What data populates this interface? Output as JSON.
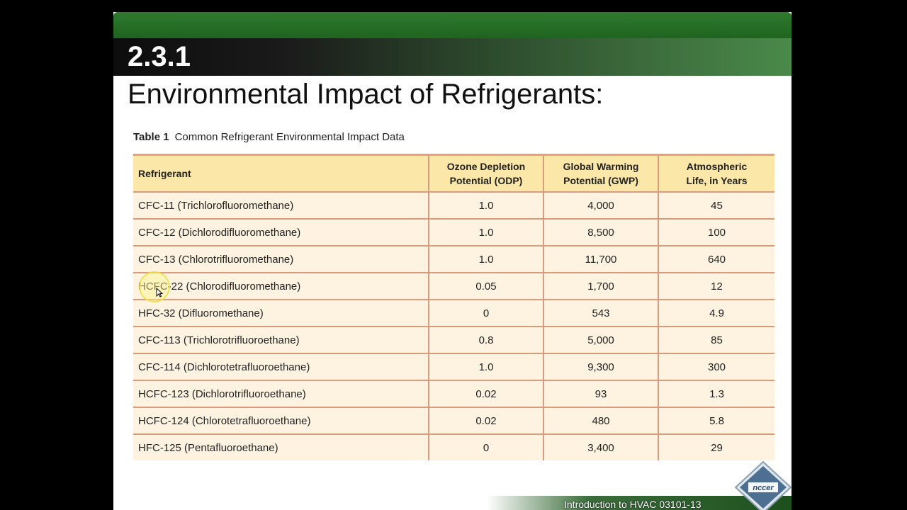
{
  "slide": {
    "section_number": "2.3.1",
    "title": "Environmental Impact of Refrigerants:"
  },
  "table": {
    "caption_number": "Table 1",
    "caption_text": "Common Refrigerant  Environmental Impact Data",
    "headers": [
      {
        "line1": "Refrigerant",
        "line2": ""
      },
      {
        "line1": "Ozone Depletion",
        "line2": "Potential (ODP)"
      },
      {
        "line1": "Global Warming",
        "line2": "Potential (GWP)"
      },
      {
        "line1": "Atmospheric",
        "line2": "Life, in Years"
      }
    ],
    "rows": [
      {
        "refrigerant": "CFC-11 (Trichlorofluoromethane)",
        "odp": "1.0",
        "gwp": "4,000",
        "life": "45"
      },
      {
        "refrigerant": "CFC-12 (Dichlorodifluoromethane)",
        "odp": "1.0",
        "gwp": "8,500",
        "life": "100"
      },
      {
        "refrigerant": "CFC-13 (Chlorotrifluoromethane)",
        "odp": "1.0",
        "gwp": "11,700",
        "life": "640"
      },
      {
        "refrigerant": "HCFC-22 (Chlorodifluoromethane)",
        "odp": "0.05",
        "gwp": "1,700",
        "life": "12"
      },
      {
        "refrigerant": "HFC-32 (Difluoromethane)",
        "odp": "0",
        "gwp": "543",
        "life": "4.9"
      },
      {
        "refrigerant": "CFC-113 (Trichlorotrifluoroethane)",
        "odp": "0.8",
        "gwp": "5,000",
        "life": "85"
      },
      {
        "refrigerant": "CFC-114 (Dichlorotetrafluoroethane)",
        "odp": "1.0",
        "gwp": "9,300",
        "life": "300"
      },
      {
        "refrigerant": "HCFC-123 (Dichlorotrifluoroethane)",
        "odp": "0.02",
        "gwp": "93",
        "life": "1.3"
      },
      {
        "refrigerant": "HCFC-124 (Chlorotetrafluoroethane)",
        "odp": "0.02",
        "gwp": "480",
        "life": "5.8"
      },
      {
        "refrigerant": "HFC-125 (Pentafluoroethane)",
        "odp": "0",
        "gwp": "3,400",
        "life": "29"
      }
    ]
  },
  "footer": {
    "course_text": "Introduction to HVAC 03101-13",
    "logo_text": "nccer"
  },
  "colors": {
    "header_green": "#2f7a2f",
    "table_header_bg": "#fbe7a8",
    "table_body_bg": "#fdf3e0",
    "table_rule": "#d99b7e"
  },
  "icons": {
    "cursor": "cursor-arrow-icon",
    "logo": "nccer-logo-icon"
  }
}
